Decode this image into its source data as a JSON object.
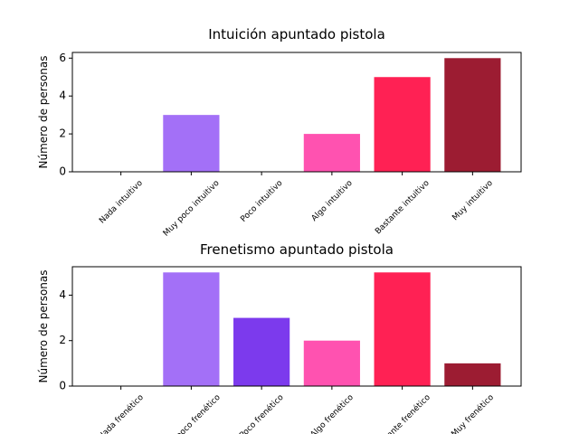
{
  "chart_data": [
    {
      "type": "bar",
      "title": "Intuición apuntado pistola",
      "ylabel": "Número de personas",
      "categories": [
        "Nada intuitivo",
        "Muy poco intuitivo",
        "Poco intuitivo",
        "Algo intuitivo",
        "Bastante intuitivo",
        "Muy intuitivo"
      ],
      "values": [
        0,
        3,
        0,
        2,
        5,
        6
      ],
      "colors": [
        "#d8b4fe",
        "#a370f7",
        "#7c3aed",
        "#ff52b0",
        "#ff2154",
        "#9c1c32"
      ],
      "ylim": [
        0,
        6.3
      ],
      "yticks": [
        0,
        2,
        4,
        6
      ]
    },
    {
      "type": "bar",
      "title": "Frenetismo apuntado pistola",
      "ylabel": "Número de personas",
      "categories": [
        "Nada frenético",
        "Muy poco frenético",
        "Poco frenético",
        "Algo frenético",
        "Bastante frenético",
        "Muy frenético"
      ],
      "values": [
        0,
        5,
        3,
        2,
        5,
        1
      ],
      "colors": [
        "#d8b4fe",
        "#a370f7",
        "#7c3aed",
        "#ff52b0",
        "#ff2154",
        "#9c1c32"
      ],
      "ylim": [
        0,
        5.25
      ],
      "yticks": [
        0,
        2,
        4
      ]
    }
  ]
}
